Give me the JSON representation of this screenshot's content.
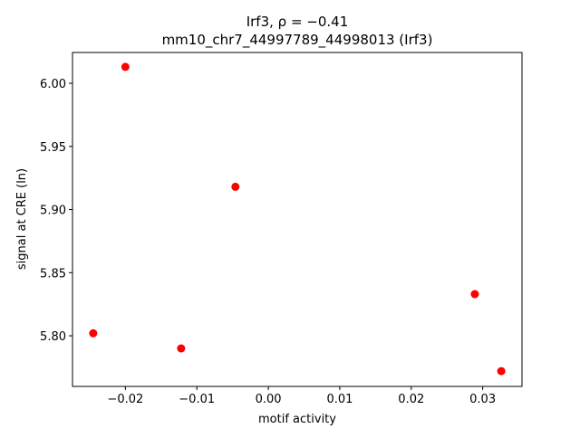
{
  "chart_data": {
    "type": "scatter",
    "title": "Irf3, ρ = −0.41",
    "subtitle": "mm10_chr7_44997789_44998013 (Irf3)",
    "x_label": "motif activity",
    "y_label": "signal at CRE (ln)",
    "color": "#ff0000",
    "x": [
      -0.02,
      -0.0046,
      -0.0245,
      -0.0122,
      0.0289,
      0.0326
    ],
    "values": [
      6.013,
      5.918,
      5.802,
      5.79,
      5.833,
      5.772
    ],
    "xlim": [
      -0.0274,
      0.0355
    ],
    "ylim": [
      5.7599,
      6.0244
    ],
    "xticks": [
      {
        "value": -0.02,
        "label": "−0.02"
      },
      {
        "value": -0.01,
        "label": "−0.01"
      },
      {
        "value": 0,
        "label": "0.00"
      },
      0.01,
      0.02,
      0.03
    ],
    "yticks": [
      {
        "value": 5.8,
        "label": "5.80"
      },
      5.85,
      {
        "value": 5.9,
        "label": "5.90"
      },
      5.95,
      {
        "value": 6,
        "label": "6.00"
      }
    ]
  }
}
